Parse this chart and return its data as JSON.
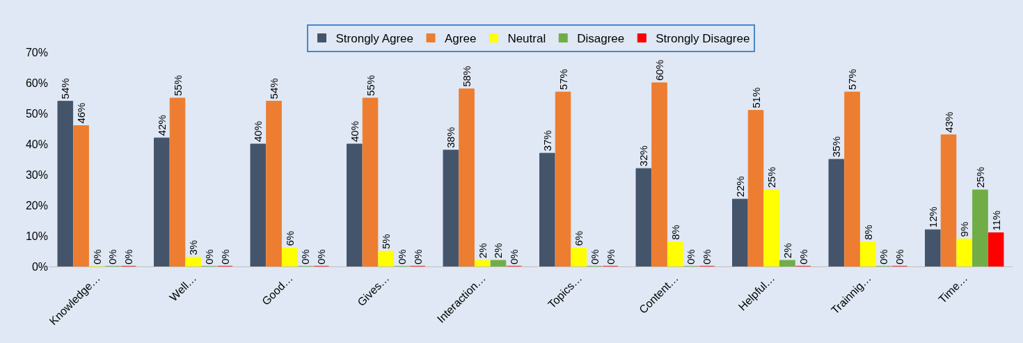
{
  "chart_data": {
    "type": "bar",
    "categories": [
      "Knowledge…",
      "Well…",
      "Good…",
      "Gives…",
      "Interaction…",
      "Topics…",
      "Content…",
      "Helpful…",
      "Trainnig…",
      "Time…"
    ],
    "series": [
      {
        "name": "Strongly Agree",
        "color": "#44546a",
        "values": [
          54,
          42,
          40,
          40,
          38,
          37,
          32,
          22,
          35,
          12
        ],
        "value_labels": [
          "54%",
          "42%",
          "40%",
          "40%",
          "38%",
          "37%",
          "32%",
          "22%",
          "35%",
          "12%"
        ]
      },
      {
        "name": "Agree",
        "color": "#ed7d31",
        "values": [
          46,
          55,
          54,
          55,
          58,
          57,
          60,
          51,
          57,
          43
        ],
        "value_labels": [
          "46%",
          "55%",
          "54%",
          "55%",
          "58%",
          "57%",
          "60%",
          "51%",
          "57%",
          "43%"
        ]
      },
      {
        "name": "Neutral",
        "color": "#ffff00",
        "values": [
          0,
          3,
          6,
          5,
          2,
          6,
          8,
          25,
          8,
          9
        ],
        "value_labels": [
          "0%",
          "3%",
          "6%",
          "5%",
          "2%",
          "6%",
          "8%",
          "25%",
          "8%",
          "9%"
        ]
      },
      {
        "name": "Disagree",
        "color": "#70ad47",
        "values": [
          0,
          0,
          0,
          0,
          2,
          0,
          0,
          2,
          0,
          25
        ],
        "value_labels": [
          "0%",
          "0%",
          "0%",
          "0%",
          "2%",
          "0%",
          "0%",
          "2%",
          "0%",
          "25%"
        ]
      },
      {
        "name": "Strongly Disagree",
        "color": "#ff0000",
        "values": [
          0,
          0,
          0,
          0,
          0,
          0,
          0,
          0,
          0,
          11
        ],
        "value_labels": [
          "0%",
          "0%",
          "0%",
          "0%",
          "0%",
          "0%",
          "0%",
          "0%",
          "0%",
          "11%"
        ]
      }
    ],
    "ylim": [
      0,
      70
    ],
    "yticks": [
      {
        "value": 0,
        "label": "0%"
      },
      {
        "value": 10,
        "label": "10%"
      },
      {
        "value": 20,
        "label": "20%"
      },
      {
        "value": 30,
        "label": "30%"
      },
      {
        "value": 40,
        "label": "40%"
      },
      {
        "value": 50,
        "label": "50%"
      },
      {
        "value": 60,
        "label": "60%"
      },
      {
        "value": 70,
        "label": "70%"
      }
    ],
    "grid": false,
    "legend": "top"
  }
}
